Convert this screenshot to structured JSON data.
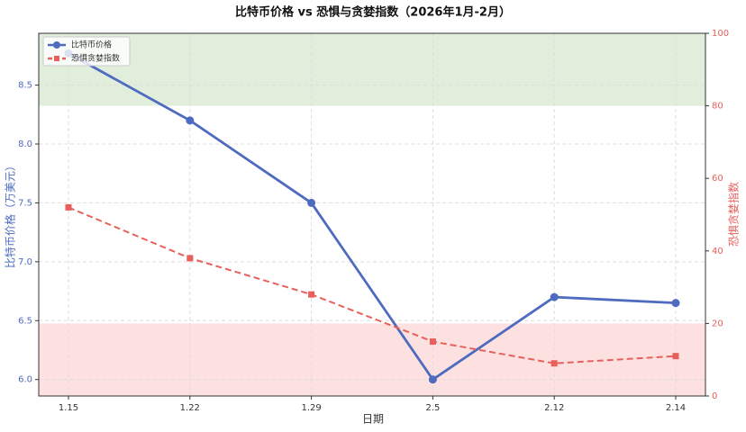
{
  "chart_data": {
    "type": "line",
    "title": "比特币价格 vs 恐惧与贪婪指数（2026年1月-2月）",
    "x_label": "日期",
    "y_label": "比特币价格（万美元）",
    "y2_label": "恐惧贪婪指数",
    "categories": [
      "1.15",
      "1.22",
      "1.29",
      "2.5",
      "2.12",
      "2.14"
    ],
    "series": [
      {
        "name": "比特币价格",
        "color": "#4f6bbf",
        "values": [
          8.77,
          8.2,
          7.5,
          6.0,
          6.7,
          6.65
        ],
        "axis": "y",
        "marker": "circle",
        "dash": false
      },
      {
        "name": "恐惧贪婪指数",
        "color": "#e8605c",
        "values": [
          52,
          38,
          28,
          15,
          9,
          11
        ],
        "axis": "y2",
        "marker": "square",
        "dash": true
      }
    ],
    "ylim": [
      5.86,
      8.94
    ],
    "yticks": [
      {
        "value": 6.0,
        "label": "6.0"
      },
      6.5,
      {
        "value": 7.0,
        "label": "7.0"
      },
      7.5,
      {
        "value": 8.0,
        "label": "8.0"
      },
      8.5
    ],
    "y2lim": [
      0,
      100
    ],
    "y2ticks": [
      0,
      20,
      40,
      60,
      80,
      100
    ],
    "bands": [
      {
        "range": [
          80,
          100
        ],
        "color": "#d9ead3",
        "axis": "y2"
      },
      {
        "range": [
          0,
          20
        ],
        "color": "#fdd9da",
        "axis": "y2"
      }
    ],
    "grid": true,
    "legend": "upper-left"
  }
}
